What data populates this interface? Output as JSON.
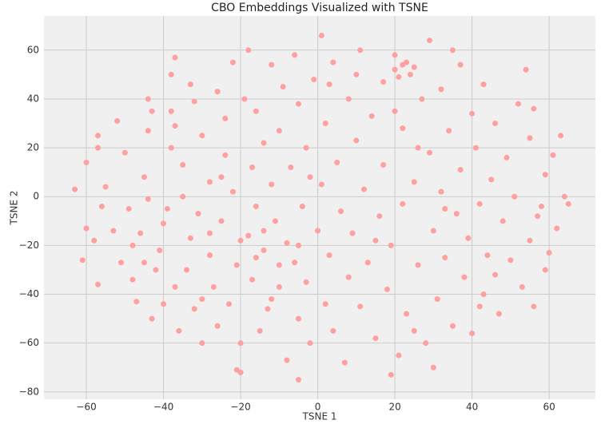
{
  "chart_data": {
    "type": "scatter",
    "title": "CBO Embeddings Visualized with TSNE",
    "x_label": "TSNE 1",
    "y_label": "TSNE 2",
    "color": "#ffa0a0",
    "grid": true,
    "xlim": [
      -71,
      72
    ],
    "ylim": [
      -83,
      74
    ],
    "xticks": [
      {
        "value": -60,
        "label": "−60"
      },
      {
        "value": -40,
        "label": "−40"
      },
      {
        "value": -20,
        "label": "−20"
      },
      0,
      20,
      40,
      60
    ],
    "yticks": [
      {
        "value": -80,
        "label": "−80"
      },
      {
        "value": -60,
        "label": "−60"
      },
      {
        "value": -40,
        "label": "−40"
      },
      {
        "value": -20,
        "label": "−20"
      },
      0,
      20,
      40,
      60
    ],
    "x": [
      -63,
      -60,
      -60,
      -61,
      -58,
      -57,
      -56,
      -55,
      -57,
      -57,
      -52,
      -51,
      -50,
      -49,
      -47,
      -48,
      -46,
      -45,
      -45,
      -44,
      -44,
      -43,
      -44,
      -43,
      -41,
      -40,
      -40,
      -39,
      -38,
      -38,
      -38,
      -37,
      -37,
      -37,
      -36,
      -35,
      -35,
      -34,
      -33,
      -33,
      -32,
      -32,
      -31,
      -30,
      -30,
      -28,
      -28,
      -27,
      -26,
      -26,
      -25,
      -24,
      -24,
      -23,
      -22,
      -22,
      -21,
      -21,
      -20,
      -19,
      -18,
      -18,
      -17,
      -17,
      -16,
      -16,
      -15,
      -14,
      -14,
      -13,
      -12,
      -12,
      -11,
      -10,
      -10,
      -9,
      -8,
      -8,
      -7,
      -6,
      -6,
      -5,
      -5,
      -4,
      -3,
      -3,
      -2,
      -1,
      0,
      1,
      1,
      2,
      2,
      3,
      4,
      4,
      5,
      6,
      7,
      8,
      8,
      9,
      10,
      11,
      11,
      12,
      13,
      14,
      15,
      16,
      17,
      17,
      18,
      19,
      20,
      20,
      21,
      22,
      22,
      23,
      24,
      25,
      26,
      27,
      28,
      29,
      29,
      30,
      31,
      32,
      32,
      33,
      34,
      35,
      36,
      37,
      37,
      38,
      39,
      40,
      40,
      41,
      42,
      43,
      43,
      44,
      45,
      46,
      47,
      48,
      49,
      50,
      51,
      52,
      53,
      54,
      55,
      55,
      56,
      56,
      58,
      59,
      60,
      61,
      62,
      63,
      64,
      65,
      59,
      57,
      46,
      42,
      30,
      19,
      -5,
      -20,
      25,
      35,
      10,
      -28,
      -20,
      -16,
      -14,
      -10,
      -5,
      15,
      -30,
      -48,
      -53,
      -42,
      26,
      33,
      -2,
      -12,
      20,
      3,
      -25,
      23,
      22,
      25,
      21
    ],
    "y": [
      3,
      14,
      -13,
      -26,
      -18,
      -36,
      -4,
      4,
      25,
      20,
      31,
      -27,
      18,
      -5,
      -43,
      -34,
      -15,
      -27,
      8,
      -1,
      27,
      35,
      40,
      -50,
      -22,
      -44,
      -11,
      -5,
      20,
      35,
      50,
      57,
      29,
      -37,
      -55,
      13,
      0,
      -30,
      -17,
      46,
      39,
      -46,
      -7,
      -60,
      25,
      6,
      -24,
      -37,
      43,
      -53,
      -10,
      17,
      32,
      -44,
      55,
      2,
      -28,
      -71,
      -60,
      40,
      -16,
      60,
      12,
      -34,
      35,
      -4,
      -55,
      22,
      -22,
      -46,
      54,
      5,
      -10,
      -37,
      27,
      45,
      -67,
      -19,
      12,
      -27,
      58,
      38,
      -50,
      -4,
      20,
      -35,
      -60,
      48,
      -14,
      66,
      5,
      -44,
      30,
      -24,
      55,
      -55,
      14,
      -6,
      -68,
      40,
      -33,
      -15,
      23,
      60,
      -45,
      3,
      -27,
      33,
      -58,
      -8,
      47,
      13,
      -38,
      -20,
      58,
      52,
      -65,
      -3,
      28,
      -48,
      50,
      6,
      -28,
      40,
      -60,
      18,
      64,
      -14,
      -42,
      44,
      2,
      -25,
      27,
      -53,
      -7,
      54,
      11,
      -33,
      -17,
      34,
      -56,
      20,
      -3,
      46,
      -40,
      -24,
      7,
      30,
      -48,
      -10,
      16,
      -26,
      0,
      38,
      -37,
      52,
      -18,
      24,
      -45,
      36,
      -4,
      9,
      -23,
      17,
      -13,
      25,
      0,
      -3,
      -30,
      -8,
      -32,
      -45,
      -70,
      -73,
      -75,
      -72,
      -55,
      60,
      50,
      -15,
      -18,
      -25,
      -14,
      -28,
      -20,
      -18,
      -42,
      -20,
      -14,
      -30,
      20,
      -5,
      8,
      -42,
      35,
      46,
      8,
      55,
      54,
      53,
      49
    ]
  }
}
